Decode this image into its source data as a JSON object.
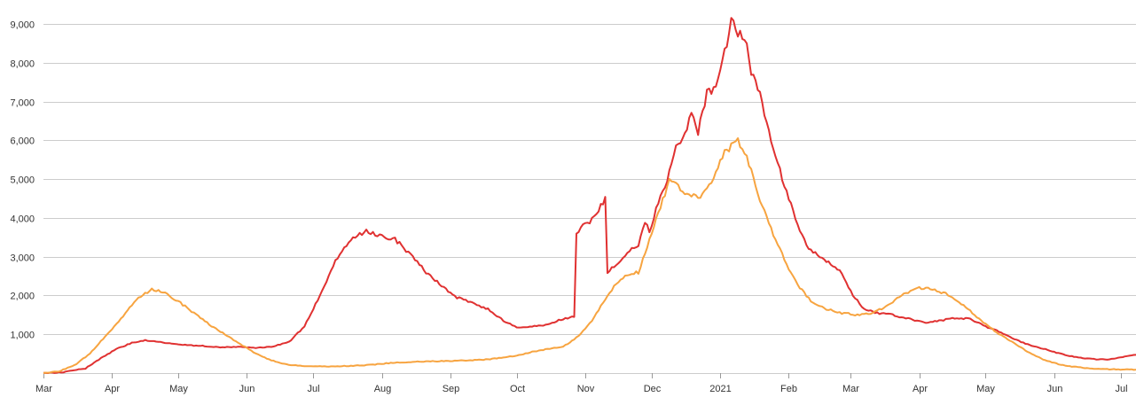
{
  "chart_data": {
    "type": "line",
    "title": "",
    "xlabel": "",
    "ylabel": "",
    "ylim": [
      0,
      9000
    ],
    "grid": true,
    "legend": "none",
    "yticks": [
      1000,
      2000,
      3000,
      4000,
      5000,
      6000,
      7000,
      8000,
      9000
    ],
    "ytick_labels": [
      "1,000",
      "2,000",
      "3,000",
      "4,000",
      "5,000",
      "6,000",
      "7,000",
      "8,000",
      "9,000"
    ],
    "xticks": [
      {
        "date": "2020-03-01",
        "label": "Mar"
      },
      {
        "date": "2020-04-01",
        "label": "Apr"
      },
      {
        "date": "2020-05-01",
        "label": "May"
      },
      {
        "date": "2020-06-01",
        "label": "Jun"
      },
      {
        "date": "2020-07-01",
        "label": "Jul"
      },
      {
        "date": "2020-08-01",
        "label": "Aug"
      },
      {
        "date": "2020-09-01",
        "label": "Sep"
      },
      {
        "date": "2020-10-01",
        "label": "Oct"
      },
      {
        "date": "2020-11-01",
        "label": "Nov"
      },
      {
        "date": "2020-12-01",
        "label": "Dec"
      },
      {
        "date": "2021-01-01",
        "label": "2021"
      },
      {
        "date": "2021-02-01",
        "label": "Feb"
      },
      {
        "date": "2021-03-01",
        "label": "Mar"
      },
      {
        "date": "2021-04-01",
        "label": "Apr"
      },
      {
        "date": "2021-05-01",
        "label": "May"
      },
      {
        "date": "2021-06-01",
        "label": "Jun"
      },
      {
        "date": "2021-07-01",
        "label": "Jul"
      }
    ],
    "xlim": [
      "2020-03-01",
      "2021-07-08"
    ],
    "series": [
      {
        "color": "#e03131",
        "points": [
          [
            "2020-03-01",
            0
          ],
          [
            "2020-03-10",
            20
          ],
          [
            "2020-03-20",
            120
          ],
          [
            "2020-03-27",
            380
          ],
          [
            "2020-04-03",
            620
          ],
          [
            "2020-04-10",
            780
          ],
          [
            "2020-04-16",
            850
          ],
          [
            "2020-04-25",
            780
          ],
          [
            "2020-05-05",
            720
          ],
          [
            "2020-05-12",
            700
          ],
          [
            "2020-05-20",
            660
          ],
          [
            "2020-05-28",
            680
          ],
          [
            "2020-06-05",
            650
          ],
          [
            "2020-06-12",
            680
          ],
          [
            "2020-06-20",
            800
          ],
          [
            "2020-06-27",
            1200
          ],
          [
            "2020-07-04",
            2000
          ],
          [
            "2020-07-11",
            2900
          ],
          [
            "2020-07-18",
            3450
          ],
          [
            "2020-07-25",
            3650
          ],
          [
            "2020-07-31",
            3550
          ],
          [
            "2020-08-07",
            3450
          ],
          [
            "2020-08-14",
            3050
          ],
          [
            "2020-08-21",
            2600
          ],
          [
            "2020-08-28",
            2250
          ],
          [
            "2020-09-04",
            1950
          ],
          [
            "2020-09-11",
            1800
          ],
          [
            "2020-09-18",
            1650
          ],
          [
            "2020-09-25",
            1350
          ],
          [
            "2020-10-01",
            1170
          ],
          [
            "2020-10-08",
            1200
          ],
          [
            "2020-10-15",
            1250
          ],
          [
            "2020-10-22",
            1400
          ],
          [
            "2020-10-27",
            1450
          ],
          [
            "2020-10-28",
            3600
          ],
          [
            "2020-10-31",
            3800
          ],
          [
            "2020-11-04",
            3950
          ],
          [
            "2020-11-08",
            4300
          ],
          [
            "2020-11-10",
            4500
          ],
          [
            "2020-11-11",
            2600
          ],
          [
            "2020-11-15",
            2800
          ],
          [
            "2020-11-20",
            3100
          ],
          [
            "2020-11-25",
            3300
          ],
          [
            "2020-11-28",
            3900
          ],
          [
            "2020-11-30",
            3650
          ],
          [
            "2020-12-04",
            4400
          ],
          [
            "2020-12-08",
            5000
          ],
          [
            "2020-12-12",
            5800
          ],
          [
            "2020-12-16",
            6200
          ],
          [
            "2020-12-19",
            6700
          ],
          [
            "2020-12-22",
            6200
          ],
          [
            "2020-12-26",
            7200
          ],
          [
            "2020-12-29",
            7300
          ],
          [
            "2020-12-31",
            7600
          ],
          [
            "2021-01-04",
            8500
          ],
          [
            "2021-01-06",
            9150
          ],
          [
            "2021-01-09",
            8800
          ],
          [
            "2021-01-12",
            8700
          ],
          [
            "2021-01-15",
            7800
          ],
          [
            "2021-01-18",
            7400
          ],
          [
            "2021-01-23",
            6200
          ],
          [
            "2021-01-27",
            5400
          ],
          [
            "2021-02-01",
            4500
          ],
          [
            "2021-02-05",
            3800
          ],
          [
            "2021-02-10",
            3200
          ],
          [
            "2021-02-15",
            3000
          ],
          [
            "2021-02-20",
            2800
          ],
          [
            "2021-02-25",
            2600
          ],
          [
            "2021-03-01",
            2100
          ],
          [
            "2021-03-07",
            1650
          ],
          [
            "2021-03-13",
            1550
          ],
          [
            "2021-03-20",
            1500
          ],
          [
            "2021-03-27",
            1400
          ],
          [
            "2021-04-03",
            1300
          ],
          [
            "2021-04-10",
            1350
          ],
          [
            "2021-04-17",
            1420
          ],
          [
            "2021-04-24",
            1400
          ],
          [
            "2021-05-01",
            1200
          ],
          [
            "2021-05-08",
            1050
          ],
          [
            "2021-05-15",
            850
          ],
          [
            "2021-05-22",
            700
          ],
          [
            "2021-05-29",
            600
          ],
          [
            "2021-06-05",
            480
          ],
          [
            "2021-06-12",
            400
          ],
          [
            "2021-06-19",
            360
          ],
          [
            "2021-06-26",
            350
          ],
          [
            "2021-07-02",
            420
          ],
          [
            "2021-07-08",
            470
          ]
        ]
      },
      {
        "color": "#f7a440",
        "points": [
          [
            "2020-03-01",
            0
          ],
          [
            "2020-03-08",
            50
          ],
          [
            "2020-03-15",
            200
          ],
          [
            "2020-03-22",
            500
          ],
          [
            "2020-03-29",
            950
          ],
          [
            "2020-04-05",
            1400
          ],
          [
            "2020-04-12",
            1900
          ],
          [
            "2020-04-19",
            2150
          ],
          [
            "2020-04-24",
            2100
          ],
          [
            "2020-05-01",
            1850
          ],
          [
            "2020-05-08",
            1550
          ],
          [
            "2020-05-15",
            1250
          ],
          [
            "2020-05-22",
            1000
          ],
          [
            "2020-05-29",
            750
          ],
          [
            "2020-06-05",
            500
          ],
          [
            "2020-06-12",
            330
          ],
          [
            "2020-06-19",
            220
          ],
          [
            "2020-06-26",
            180
          ],
          [
            "2020-07-10",
            170
          ],
          [
            "2020-07-24",
            200
          ],
          [
            "2020-08-07",
            270
          ],
          [
            "2020-08-21",
            300
          ],
          [
            "2020-09-04",
            320
          ],
          [
            "2020-09-18",
            350
          ],
          [
            "2020-10-01",
            450
          ],
          [
            "2020-10-08",
            550
          ],
          [
            "2020-10-15",
            620
          ],
          [
            "2020-10-22",
            680
          ],
          [
            "2020-10-29",
            950
          ],
          [
            "2020-11-04",
            1350
          ],
          [
            "2020-11-10",
            1900
          ],
          [
            "2020-11-15",
            2300
          ],
          [
            "2020-11-20",
            2550
          ],
          [
            "2020-11-25",
            2600
          ],
          [
            "2020-12-01",
            3600
          ],
          [
            "2020-12-05",
            4300
          ],
          [
            "2020-12-09",
            4950
          ],
          [
            "2020-12-13",
            4800
          ],
          [
            "2020-12-18",
            4600
          ],
          [
            "2020-12-22",
            4500
          ],
          [
            "2020-12-26",
            4700
          ],
          [
            "2020-12-30",
            5200
          ],
          [
            "2021-01-03",
            5700
          ],
          [
            "2021-01-07",
            5900
          ],
          [
            "2021-01-09",
            6000
          ],
          [
            "2021-01-13",
            5600
          ],
          [
            "2021-01-17",
            4800
          ],
          [
            "2021-01-22",
            4000
          ],
          [
            "2021-01-27",
            3300
          ],
          [
            "2021-02-01",
            2700
          ],
          [
            "2021-02-06",
            2200
          ],
          [
            "2021-02-12",
            1800
          ],
          [
            "2021-02-18",
            1650
          ],
          [
            "2021-02-25",
            1550
          ],
          [
            "2021-03-04",
            1500
          ],
          [
            "2021-03-11",
            1550
          ],
          [
            "2021-03-18",
            1750
          ],
          [
            "2021-03-25",
            2050
          ],
          [
            "2021-04-01",
            2200
          ],
          [
            "2021-04-08",
            2150
          ],
          [
            "2021-04-15",
            2000
          ],
          [
            "2021-04-22",
            1700
          ],
          [
            "2021-04-29",
            1350
          ],
          [
            "2021-05-06",
            1050
          ],
          [
            "2021-05-13",
            800
          ],
          [
            "2021-05-20",
            550
          ],
          [
            "2021-05-27",
            350
          ],
          [
            "2021-06-03",
            230
          ],
          [
            "2021-06-10",
            160
          ],
          [
            "2021-06-17",
            120
          ],
          [
            "2021-06-24",
            100
          ],
          [
            "2021-07-01",
            90
          ],
          [
            "2021-07-08",
            90
          ]
        ]
      }
    ]
  }
}
